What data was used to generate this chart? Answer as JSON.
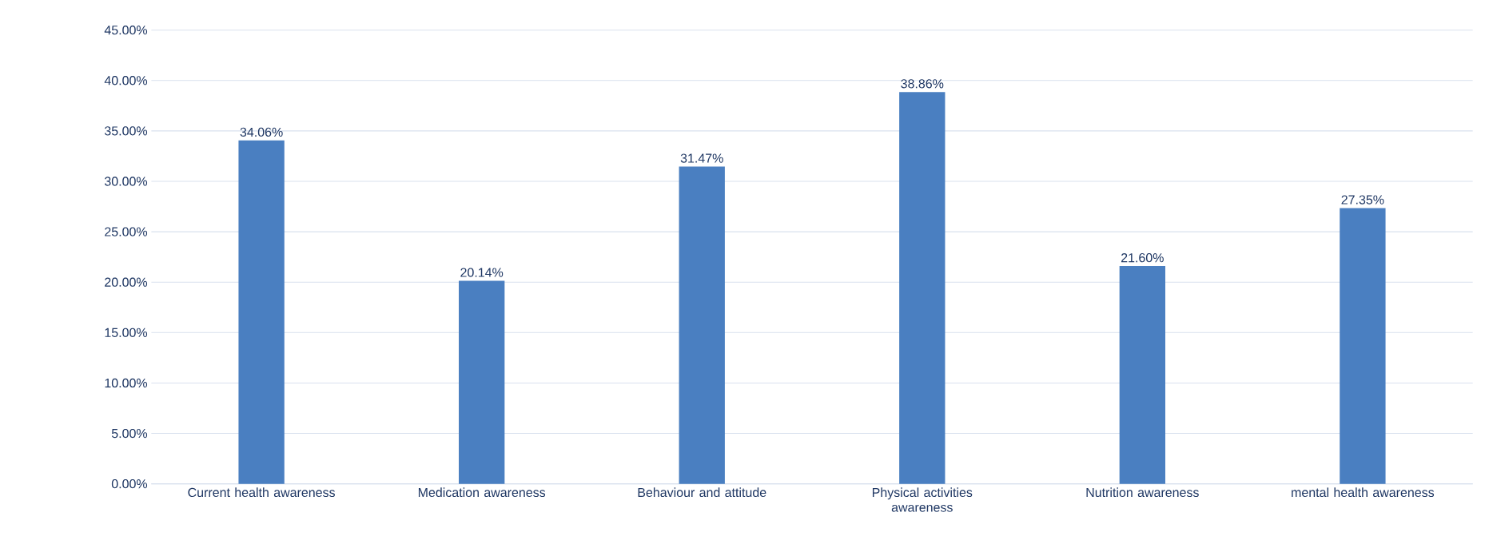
{
  "chart_data": {
    "type": "bar",
    "categories": [
      "Current health awareness",
      "Medication awareness",
      "Behaviour and attitude",
      "Physical activities awareness",
      "Nutrition awareness",
      "mental health awareness"
    ],
    "values": [
      34.06,
      20.14,
      31.47,
      38.86,
      21.6,
      27.35
    ],
    "value_labels": [
      "34.06%",
      "20.14%",
      "31.47%",
      "38.86%",
      "21.60%",
      "27.35%"
    ],
    "color": "#4a7fc1",
    "ylim": [
      0,
      45
    ],
    "yticks": [
      {
        "value": 0,
        "label": "0.00%"
      },
      {
        "value": 5,
        "label": "5.00%"
      },
      {
        "value": 10,
        "label": "10.00%"
      },
      {
        "value": 15,
        "label": "15.00%"
      },
      {
        "value": 20,
        "label": "20.00%"
      },
      {
        "value": 25,
        "label": "25.00%"
      },
      {
        "value": 30,
        "label": "30.00%"
      },
      {
        "value": 35,
        "label": "35.00%"
      },
      {
        "value": 40,
        "label": "40.00%"
      },
      {
        "value": 45,
        "label": "45.00%"
      }
    ],
    "grid": "y"
  }
}
